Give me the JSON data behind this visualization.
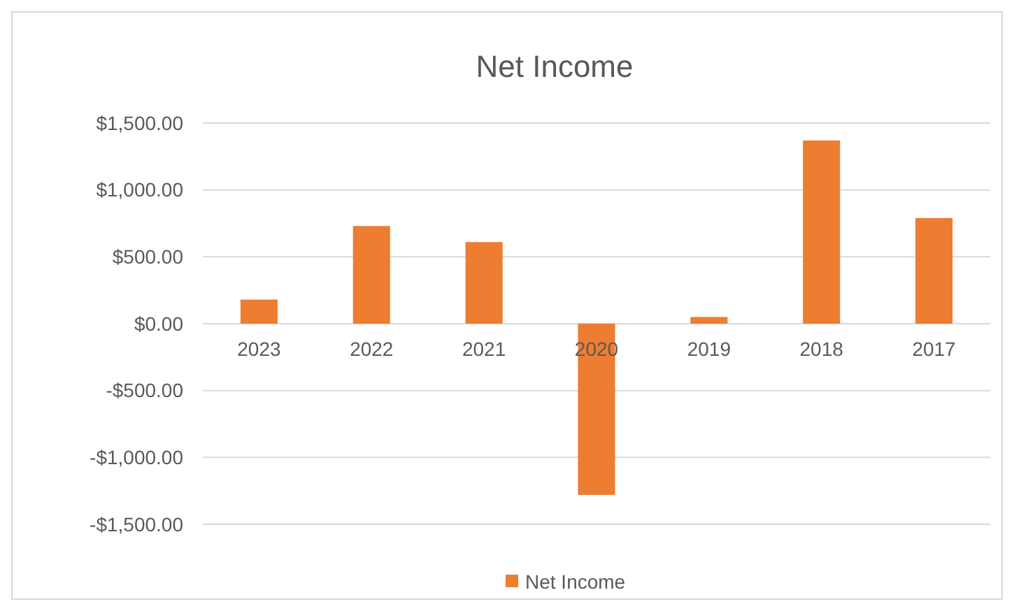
{
  "chart_data": {
    "type": "bar",
    "title": "Net Income",
    "categories": [
      "2023",
      "2022",
      "2021",
      "2020",
      "2019",
      "2018",
      "2017"
    ],
    "series": [
      {
        "name": "Net Income",
        "color": "#ed7d31",
        "values": [
          180,
          730,
          610,
          -1280,
          50,
          1370,
          790
        ]
      }
    ],
    "ylim": [
      -1500,
      1500
    ],
    "yticks": [
      {
        "value": -1500,
        "label": "-$1,500.00"
      },
      {
        "value": -1000,
        "label": "-$1,000.00"
      },
      {
        "value": -500,
        "label": "-$500.00"
      },
      {
        "value": 0,
        "label": "$0.00"
      },
      {
        "value": 500,
        "label": "$500.00"
      },
      {
        "value": 1000,
        "label": "$1,000.00"
      },
      {
        "value": 1500,
        "label": "$1,500.00"
      }
    ],
    "grid": "y",
    "legend": "bottom"
  }
}
